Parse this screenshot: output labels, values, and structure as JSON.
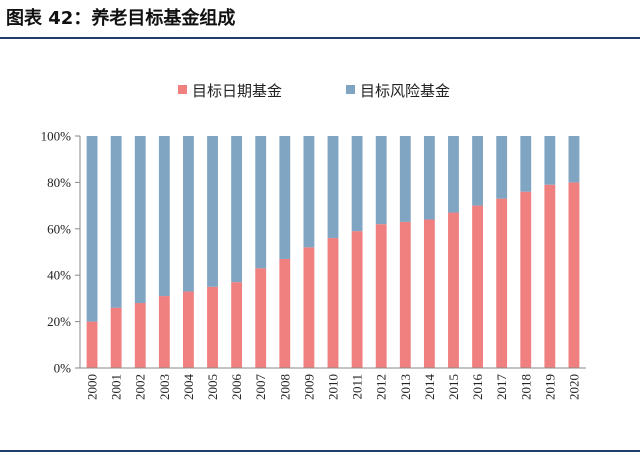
{
  "header": {
    "title": "图表 42：养老目标基金组成"
  },
  "chart_data": {
    "type": "bar",
    "stacked": true,
    "categories": [
      "2000",
      "2001",
      "2002",
      "2003",
      "2004",
      "2005",
      "2006",
      "2007",
      "2008",
      "2009",
      "2010",
      "2011",
      "2012",
      "2013",
      "2014",
      "2015",
      "2016",
      "2017",
      "2018",
      "2019",
      "2020"
    ],
    "series": [
      {
        "name": "目标日期基金",
        "color": "#f07f7f",
        "values": [
          20,
          26,
          28,
          31,
          33,
          35,
          37,
          43,
          47,
          52,
          56,
          59,
          62,
          63,
          64,
          67,
          70,
          73,
          76,
          79,
          80
        ]
      },
      {
        "name": "目标风险基金",
        "color": "#7fa5c3",
        "values": [
          80,
          74,
          72,
          69,
          67,
          65,
          63,
          57,
          53,
          48,
          44,
          41,
          38,
          37,
          36,
          33,
          30,
          27,
          24,
          21,
          20
        ]
      }
    ],
    "ylim": [
      0,
      100
    ],
    "yticks": [
      "0%",
      "20%",
      "40%",
      "60%",
      "80%",
      "100%"
    ],
    "grid": false,
    "legend_position": "top"
  }
}
